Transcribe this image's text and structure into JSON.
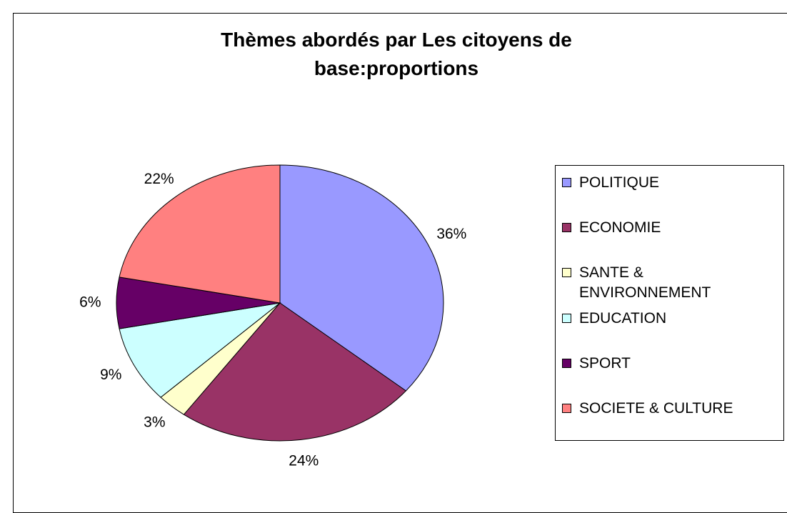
{
  "chart_data": {
    "type": "pie",
    "title": "Thèmes abordés par Les citoyens de base:proportions",
    "categories": [
      "POLITIQUE",
      "ECONOMIE",
      "SANTE & ENVIRONNEMENT",
      "EDUCATION",
      "SPORT",
      "SOCIETE & CULTURE"
    ],
    "values": [
      36,
      24,
      3,
      9,
      6,
      22
    ],
    "value_labels": [
      "36%",
      "24%",
      "3%",
      "9%",
      "6%",
      "22%"
    ],
    "colors": [
      "#9999ff",
      "#993366",
      "#ffffcc",
      "#ccffff",
      "#660066",
      "#ff8080"
    ],
    "legend": "right"
  }
}
